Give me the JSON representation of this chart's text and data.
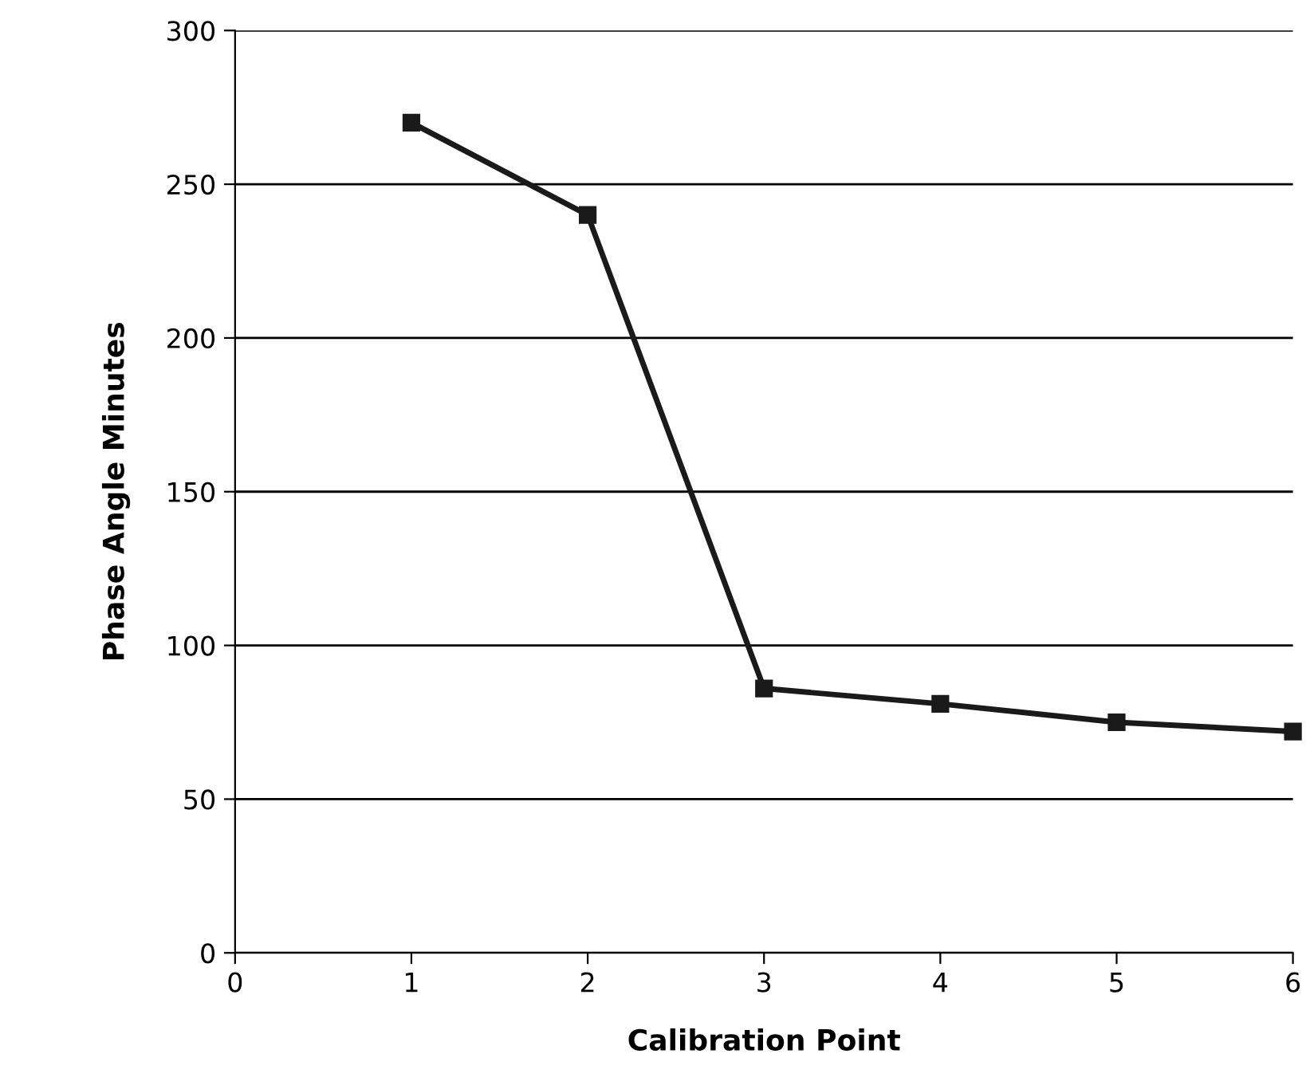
{
  "chart_data": {
    "type": "line",
    "xlabel": "Calibration Point",
    "ylabel": "Phase Angle Minutes",
    "x": [
      1,
      2,
      3,
      4,
      5,
      6
    ],
    "series": [
      {
        "color": "#1a1a1a",
        "values": [
          270,
          240,
          86,
          81,
          75,
          72
        ]
      }
    ],
    "xlim": [
      0,
      6
    ],
    "xticks": [
      0,
      1,
      2,
      3,
      4,
      5,
      6
    ],
    "ylim": [
      0,
      300
    ],
    "yticks": [
      0,
      50,
      100,
      150,
      200,
      250,
      300
    ],
    "grid": "y",
    "marker": "square",
    "line_style": "solid",
    "legend": false
  }
}
